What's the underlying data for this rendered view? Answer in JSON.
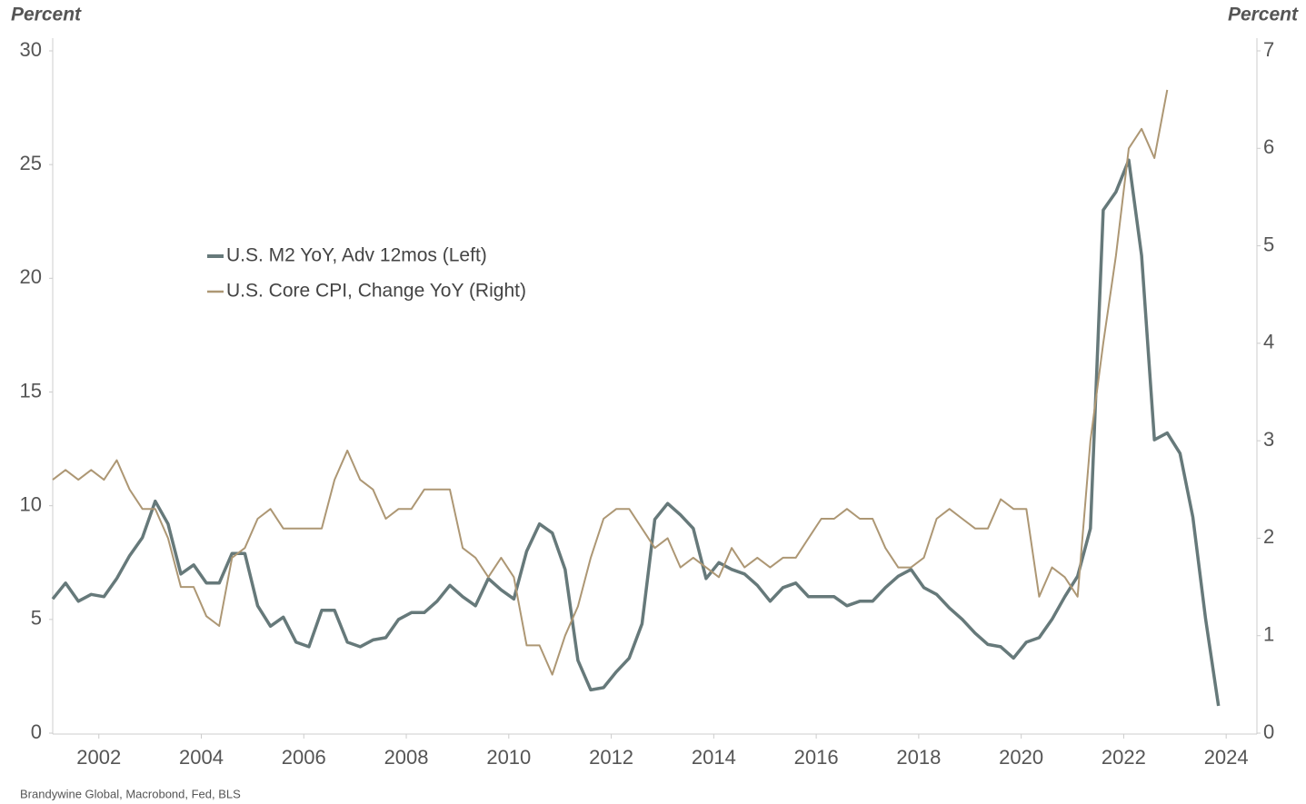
{
  "chart_data": {
    "type": "line",
    "y_label": "Percent",
    "y2_label": "Percent",
    "source": "Brandywine Global, Macrobond, Fed, BLS",
    "legend": "upper left",
    "xlim": [
      2001.1,
      2024.6
    ],
    "xticks": [
      2002,
      2004,
      2006,
      2008,
      2010,
      2012,
      2014,
      2016,
      2018,
      2020,
      2022,
      2024
    ],
    "ylim": [
      0,
      30
    ],
    "yticks": [
      0,
      5,
      10,
      15,
      20,
      25,
      30
    ],
    "y2lim": [
      0,
      7
    ],
    "y2ticks": [
      0,
      1,
      2,
      3,
      4,
      5,
      6,
      7
    ],
    "x": [
      2001.1,
      2001.35,
      2001.6,
      2001.85,
      2002.1,
      2002.35,
      2002.6,
      2002.85,
      2003.1,
      2003.35,
      2003.6,
      2003.85,
      2004.1,
      2004.35,
      2004.6,
      2004.85,
      2005.1,
      2005.35,
      2005.6,
      2005.85,
      2006.1,
      2006.35,
      2006.6,
      2006.85,
      2007.1,
      2007.35,
      2007.6,
      2007.85,
      2008.1,
      2008.35,
      2008.6,
      2008.85,
      2009.1,
      2009.35,
      2009.6,
      2009.85,
      2010.1,
      2010.35,
      2010.6,
      2010.85,
      2011.1,
      2011.35,
      2011.6,
      2011.85,
      2012.1,
      2012.35,
      2012.6,
      2012.85,
      2013.1,
      2013.35,
      2013.6,
      2013.85,
      2014.1,
      2014.35,
      2014.6,
      2014.85,
      2015.1,
      2015.35,
      2015.6,
      2015.85,
      2016.1,
      2016.35,
      2016.6,
      2016.85,
      2017.1,
      2017.35,
      2017.6,
      2017.85,
      2018.1,
      2018.35,
      2018.6,
      2018.85,
      2019.1,
      2019.35,
      2019.6,
      2019.85,
      2020.1,
      2020.35,
      2020.6,
      2020.85,
      2021.1,
      2021.35,
      2021.6,
      2021.85,
      2022.1,
      2022.35,
      2022.6,
      2022.85,
      2023.1,
      2023.35,
      2023.6,
      2023.85
    ],
    "series": [
      {
        "name": "U.S. M2 YoY, Adv 12mos (Left)",
        "color": "#66797a",
        "width": 3.5,
        "values": [
          5.9,
          6.6,
          5.8,
          6.1,
          6.0,
          6.8,
          7.8,
          8.6,
          10.2,
          9.2,
          7.0,
          7.4,
          6.6,
          6.6,
          7.9,
          7.9,
          5.6,
          4.7,
          5.1,
          4.0,
          3.8,
          5.4,
          5.4,
          4.0,
          3.8,
          4.1,
          4.2,
          5.0,
          5.3,
          5.3,
          5.8,
          6.5,
          6.0,
          5.6,
          6.8,
          6.3,
          5.9,
          8.0,
          9.2,
          8.8,
          7.2,
          3.2,
          1.9,
          2.0,
          2.7,
          3.3,
          4.8,
          9.4,
          10.1,
          9.6,
          9.0,
          6.8,
          7.5,
          7.2,
          7.0,
          6.5,
          5.8,
          6.4,
          6.6,
          6.0,
          6.0,
          6.0,
          5.6,
          5.8,
          5.8,
          6.4,
          6.9,
          7.2,
          6.4,
          6.1,
          5.5,
          5.0,
          4.4,
          3.9,
          3.8,
          3.3,
          4.0,
          4.2,
          5.0,
          6.0,
          6.9,
          9.0,
          23.0,
          23.8,
          25.2,
          21.0,
          12.9,
          13.2,
          12.3,
          9.5,
          5.0,
          1.2
        ]
      },
      {
        "name": "U.S. Core CPI, Change YoY (Right)",
        "color": "#ad9774",
        "width": 2,
        "axis": "y2",
        "values": [
          2.6,
          2.7,
          2.6,
          2.7,
          2.6,
          2.8,
          2.5,
          2.3,
          2.3,
          2.0,
          1.5,
          1.5,
          1.2,
          1.1,
          1.8,
          1.9,
          2.2,
          2.3,
          2.1,
          2.1,
          2.1,
          2.1,
          2.6,
          2.9,
          2.6,
          2.5,
          2.2,
          2.3,
          2.3,
          2.5,
          2.5,
          2.5,
          1.9,
          1.8,
          1.6,
          1.8,
          1.6,
          0.9,
          0.9,
          0.6,
          1.0,
          1.3,
          1.8,
          2.2,
          2.3,
          2.3,
          2.1,
          1.9,
          2.0,
          1.7,
          1.8,
          1.7,
          1.6,
          1.9,
          1.7,
          1.8,
          1.7,
          1.8,
          1.8,
          2.0,
          2.2,
          2.2,
          2.3,
          2.2,
          2.2,
          1.9,
          1.7,
          1.7,
          1.8,
          2.2,
          2.3,
          2.2,
          2.1,
          2.1,
          2.4,
          2.3,
          2.3,
          1.4,
          1.7,
          1.6,
          1.4,
          3.0,
          4.0,
          4.9,
          6.0,
          6.2,
          5.9,
          6.6,
          null,
          null,
          null,
          null
        ]
      }
    ]
  }
}
